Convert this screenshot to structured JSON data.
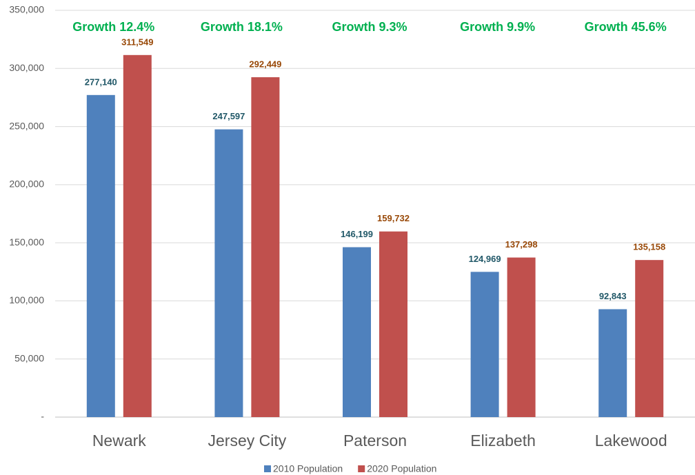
{
  "chart_data": {
    "type": "bar",
    "categories": [
      "Newark",
      "Jersey City",
      "Paterson",
      "Elizabeth",
      "Lakewood"
    ],
    "series": [
      {
        "name": "2010 Population",
        "color": "#4f81bd",
        "label_color": "#215868",
        "values": [
          277140,
          247597,
          146199,
          124969,
          92843
        ],
        "value_labels": [
          "277,140",
          "247,597",
          "146,199",
          "124,969",
          "92,843"
        ]
      },
      {
        "name": "2020 Population",
        "color": "#c0504d",
        "label_color": "#984807",
        "values": [
          311549,
          292449,
          159732,
          137298,
          135158
        ],
        "value_labels": [
          "311,549",
          "292,449",
          "159,732",
          "137,298",
          "135,158"
        ]
      }
    ],
    "annotations": [
      "Growth 12.4%",
      "Growth 18.1%",
      "Growth 9.3%",
      "Growth 9.9%",
      "Growth 45.6%"
    ],
    "ylim": [
      0,
      350000
    ],
    "yticks": [
      {
        "value": 0,
        "label": "-"
      },
      {
        "value": 50000,
        "label": "50,000"
      },
      {
        "value": 100000,
        "label": "100,000"
      },
      {
        "value": 150000,
        "label": "150,000"
      },
      {
        "value": 200000,
        "label": "200,000"
      },
      {
        "value": 250000,
        "label": "250,000"
      },
      {
        "value": 300000,
        "label": "300,000"
      },
      {
        "value": 350000,
        "label": "350,000"
      }
    ],
    "grid": true,
    "legend": "bottom"
  }
}
